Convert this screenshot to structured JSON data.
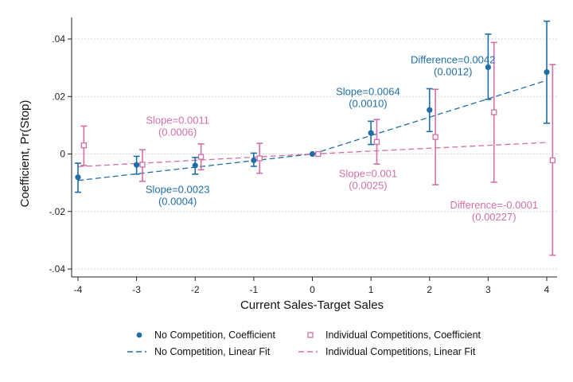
{
  "colors": {
    "no_competition": "#1f6ea8",
    "individual": "#d36fa8",
    "grid": "#c8c8c8",
    "axis": "#222222"
  },
  "chart_data": {
    "type": "scatter",
    "xlabel": "Current Sales-Target Sales",
    "ylabel": "Coefficient, Pr(Stop)",
    "xlim": [
      -4,
      4
    ],
    "ylim": [
      -0.04,
      0.04
    ],
    "x_ticks": [
      "-4",
      "-3",
      "-2",
      "-1",
      "0",
      "1",
      "2",
      "3",
      "4"
    ],
    "y_ticks": [
      {
        "value": 0.04,
        "label": ".04"
      },
      {
        "value": 0.02,
        "label": ".02"
      },
      {
        "value": 0,
        "label": "0"
      },
      {
        "value": -0.02,
        "label": "-.02"
      },
      {
        "value": -0.04,
        "label": "-.04"
      }
    ],
    "grid": "horizontal dotted",
    "legend_position": "bottom",
    "series": [
      {
        "name": "No Competition, Coefficient",
        "marker": "filled-circle",
        "color_key": "no_competition",
        "points": [
          {
            "x": -4,
            "y": -0.0081,
            "lo": -0.0133,
            "hi": -0.0032
          },
          {
            "x": -3,
            "y": -0.0038,
            "lo": -0.007,
            "hi": -0.0008
          },
          {
            "x": -2,
            "y": -0.004,
            "lo": -0.007,
            "hi": -0.0012
          },
          {
            "x": -1,
            "y": -0.0022,
            "lo": -0.0043,
            "hi": 0.0003
          },
          {
            "x": 0,
            "y": 0,
            "lo": null,
            "hi": null
          },
          {
            "x": 1,
            "y": 0.0073,
            "lo": 0.0033,
            "hi": 0.0114
          },
          {
            "x": 2,
            "y": 0.0153,
            "lo": 0.0078,
            "hi": 0.0227
          },
          {
            "x": 3,
            "y": 0.0302,
            "lo": 0.019,
            "hi": 0.0417
          },
          {
            "x": 4,
            "y": 0.0285,
            "lo": 0.0107,
            "hi": 0.0462
          }
        ]
      },
      {
        "name": "Individual Competitions, Coefficient",
        "marker": "hollow-square",
        "color_key": "individual",
        "points": [
          {
            "x": -3.9,
            "y": 0.003,
            "lo": -0.004,
            "hi": 0.0097
          },
          {
            "x": -2.9,
            "y": -0.0037,
            "lo": -0.0095,
            "hi": 0.0015
          },
          {
            "x": -1.9,
            "y": -0.001,
            "lo": -0.0055,
            "hi": 0.0035
          },
          {
            "x": -0.9,
            "y": -0.0015,
            "lo": -0.0067,
            "hi": 0.0037
          },
          {
            "x": 0.1,
            "y": 0,
            "lo": null,
            "hi": null
          },
          {
            "x": 1.1,
            "y": 0.0042,
            "lo": -0.0035,
            "hi": 0.012
          },
          {
            "x": 2.1,
            "y": 0.0059,
            "lo": -0.0107,
            "hi": 0.0225
          },
          {
            "x": 3.1,
            "y": 0.0145,
            "lo": -0.0098,
            "hi": 0.0388
          },
          {
            "x": 4.1,
            "y": -0.0022,
            "lo": -0.0352,
            "hi": 0.0311
          }
        ]
      }
    ],
    "fits": [
      {
        "name": "No Competition, Linear Fit",
        "color_key": "no_competition",
        "segments": [
          [
            -4,
            -0.0092,
            0,
            0
          ],
          [
            0,
            0,
            4,
            0.0256
          ]
        ]
      },
      {
        "name": "Individual Competitions, Linear Fit",
        "color_key": "individual",
        "segments": [
          [
            -4,
            -0.0044,
            0,
            0
          ],
          [
            0,
            0,
            4,
            0.004
          ]
        ]
      }
    ],
    "annotations": [
      {
        "lines": [
          "Difference=0.0042",
          "(0.0012)"
        ],
        "color_key": "no_competition",
        "at": [
          2.4,
          0.0315
        ]
      },
      {
        "lines": [
          "Slope=0.0064",
          "(0.0010)"
        ],
        "color_key": "no_competition",
        "at": [
          0.95,
          0.0205
        ]
      },
      {
        "lines": [
          "Slope=0.0011",
          "(0.0006)"
        ],
        "color_key": "individual",
        "at": [
          -2.3,
          0.0105
        ]
      },
      {
        "lines": [
          "Slope=0.0023",
          "(0.0004)"
        ],
        "color_key": "no_competition",
        "at": [
          -2.3,
          -0.0135
        ]
      },
      {
        "lines": [
          "Slope=0.001",
          "(0.0025)"
        ],
        "color_key": "individual",
        "at": [
          0.95,
          -0.008
        ]
      },
      {
        "lines": [
          "Difference=-0.0001",
          "(0.00227)"
        ],
        "color_key": "individual",
        "at": [
          3.1,
          -0.019
        ]
      }
    ]
  },
  "legend": [
    {
      "label": "No Competition, Coefficient",
      "symbol": "filled-circle",
      "color_key": "no_competition"
    },
    {
      "label": "Individual Competitions, Coefficient",
      "symbol": "hollow-square",
      "color_key": "individual"
    },
    {
      "label": "No Competition, Linear Fit",
      "symbol": "dashed-line",
      "color_key": "no_competition"
    },
    {
      "label": "Individual Competitions, Linear Fit",
      "symbol": "dashed-line",
      "color_key": "individual"
    }
  ]
}
